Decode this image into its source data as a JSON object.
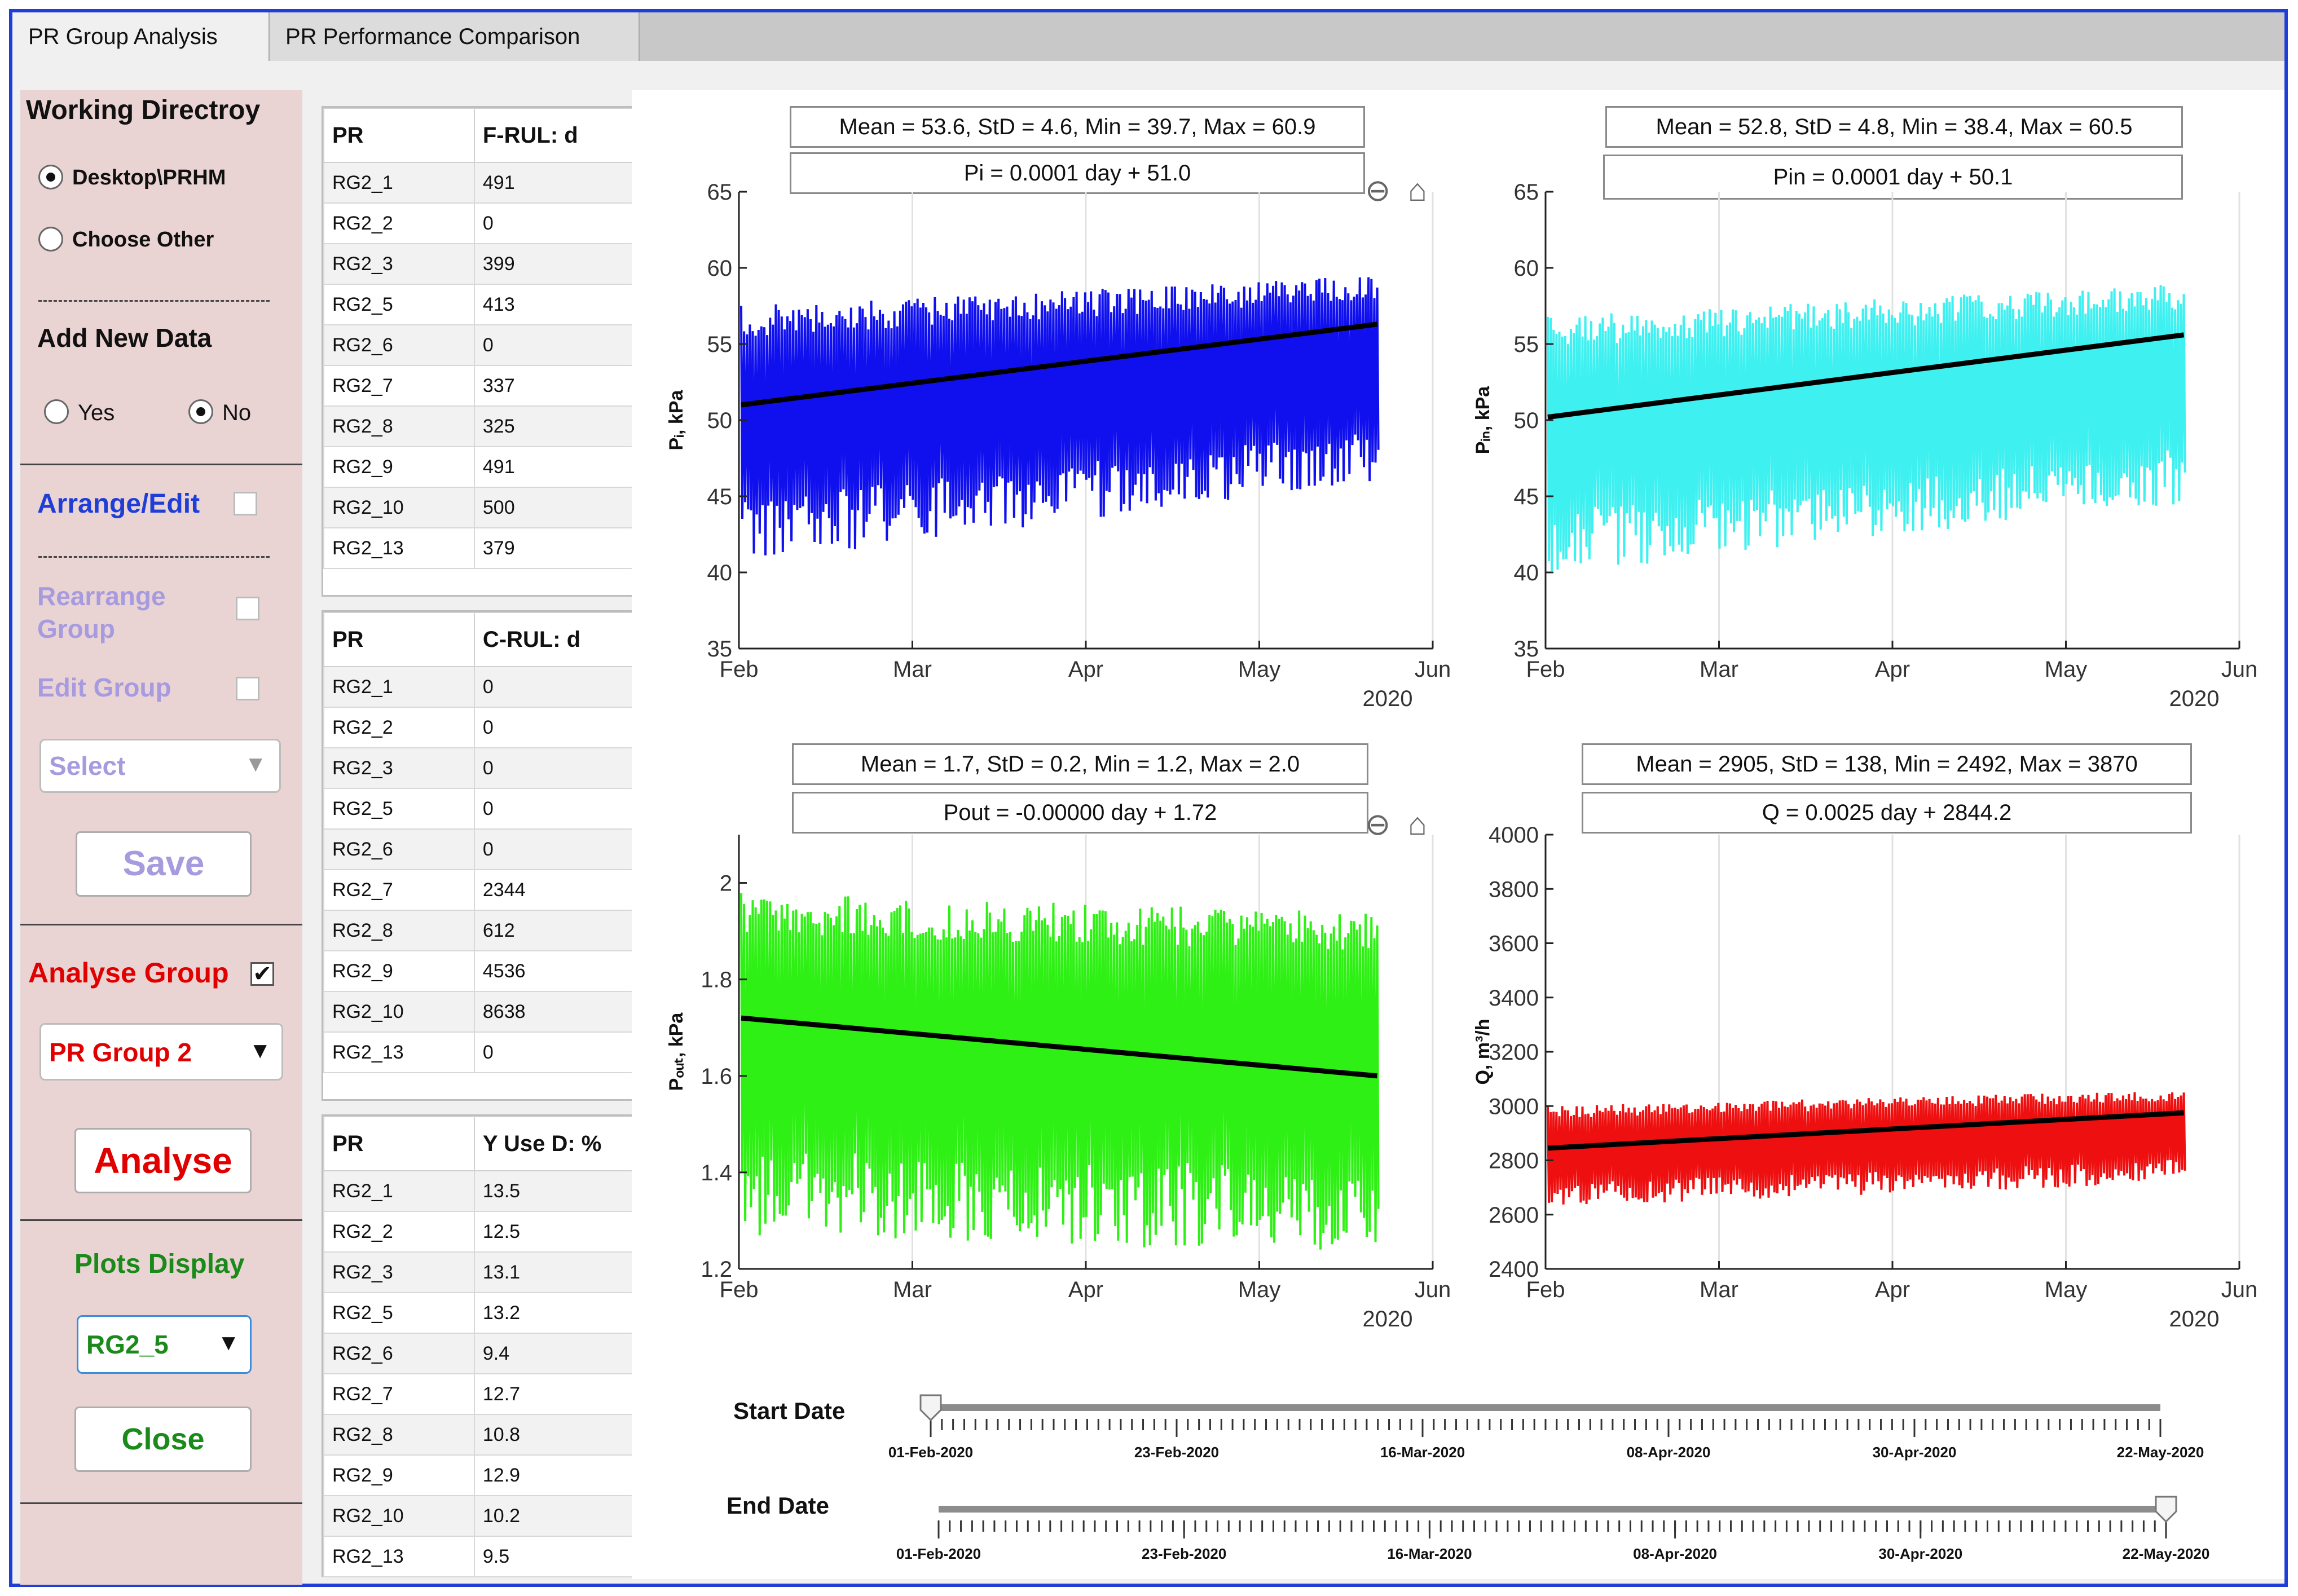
{
  "tabs": [
    "PR Group Analysis",
    "PR Performance Comparison"
  ],
  "left": {
    "working_dir_label": "Working Directroy",
    "radio_desktop": "Desktop\\PRHM",
    "radio_other": "Choose Other",
    "dashes": "------------",
    "add_new_data": "Add New Data",
    "yes": "Yes",
    "no": "No",
    "arrange_edit": "Arrange/Edit",
    "rearrange_group": "Rearrange Group",
    "edit_group": "Edit Group",
    "select": "Select",
    "save": "Save",
    "analyse_group": "Analyse Group",
    "pr_group": "PR Group 2",
    "analyse": "Analyse",
    "plots_display": "Plots Display",
    "plot_select": "RG2_5",
    "close": "Close"
  },
  "tables": [
    {
      "headers": [
        "PR",
        "F-RUL: d"
      ],
      "rows": [
        [
          "RG2_1",
          "491"
        ],
        [
          "RG2_2",
          "0"
        ],
        [
          "RG2_3",
          "399"
        ],
        [
          "RG2_5",
          "413"
        ],
        [
          "RG2_6",
          "0"
        ],
        [
          "RG2_7",
          "337"
        ],
        [
          "RG2_8",
          "325"
        ],
        [
          "RG2_9",
          "491"
        ],
        [
          "RG2_10",
          "500"
        ],
        [
          "RG2_13",
          "379"
        ]
      ]
    },
    {
      "headers": [
        "PR",
        "C-RUL: d"
      ],
      "rows": [
        [
          "RG2_1",
          "0"
        ],
        [
          "RG2_2",
          "0"
        ],
        [
          "RG2_3",
          "0"
        ],
        [
          "RG2_5",
          "0"
        ],
        [
          "RG2_6",
          "0"
        ],
        [
          "RG2_7",
          "2344"
        ],
        [
          "RG2_8",
          "612"
        ],
        [
          "RG2_9",
          "4536"
        ],
        [
          "RG2_10",
          "8638"
        ],
        [
          "RG2_13",
          "0"
        ]
      ]
    },
    {
      "headers": [
        "PR",
        "Y Use D: %"
      ],
      "rows": [
        [
          "RG2_1",
          "13.5"
        ],
        [
          "RG2_2",
          "12.5"
        ],
        [
          "RG2_3",
          "13.1"
        ],
        [
          "RG2_5",
          "13.2"
        ],
        [
          "RG2_6",
          "9.4"
        ],
        [
          "RG2_7",
          "12.7"
        ],
        [
          "RG2_8",
          "10.8"
        ],
        [
          "RG2_9",
          "12.9"
        ],
        [
          "RG2_10",
          "10.2"
        ],
        [
          "RG2_13",
          "9.5"
        ]
      ]
    }
  ],
  "chart_data": [
    {
      "type": "line",
      "stats": "Mean = 53.6, StD = 4.6, Min = 39.7, Max = 60.9",
      "fit": "Pi = 0.0001 day + 51.0",
      "ylabel": "Pᵢ, kPa",
      "ylim": [
        35,
        65
      ],
      "yticks": [
        35,
        40,
        45,
        50,
        55,
        60,
        65
      ],
      "xticks": [
        "Feb",
        "Mar",
        "Apr",
        "May",
        "Jun"
      ],
      "year": "2020",
      "color": "#1010ee",
      "low_start": 40.5,
      "low_end": 46,
      "high_start": 57.5,
      "high_end": 59.5,
      "trend_start": 51.0,
      "trend_end": 56.3
    },
    {
      "type": "line",
      "stats": "Mean = 52.8, StD = 4.8, Min = 38.4, Max = 60.5",
      "fit": "Pin = 0.0001 day + 50.1",
      "ylabel": "Pᵢₙ, kPa",
      "ylim": [
        35,
        65
      ],
      "yticks": [
        35,
        40,
        45,
        50,
        55,
        60,
        65
      ],
      "xticks": [
        "Feb",
        "Mar",
        "Apr",
        "May",
        "Jun"
      ],
      "year": "2020",
      "color": "#3ff0f0",
      "low_start": 39.8,
      "low_end": 44.5,
      "high_start": 56.8,
      "high_end": 59,
      "trend_start": 50.2,
      "trend_end": 55.6
    },
    {
      "type": "line",
      "stats": "Mean = 1.7, StD = 0.2, Min = 1.2, Max = 2.0",
      "fit": "Pout = -0.00000 day + 1.72",
      "ylabel": "Pₒᵤₜ, kPa",
      "ylim": [
        1.2,
        2.1
      ],
      "yticks": [
        1.2,
        1.4,
        1.6,
        1.8,
        2.0
      ],
      "ytick_labels": [
        "1.2",
        "1.4",
        "1.6",
        "1.8",
        "2"
      ],
      "xticks": [
        "Feb",
        "Mar",
        "Apr",
        "May",
        "Jun"
      ],
      "year": "2020",
      "color": "#2ff015",
      "low_start": 1.27,
      "low_end": 1.23,
      "high_start": 1.98,
      "high_end": 1.94,
      "trend_start": 1.72,
      "trend_end": 1.6
    },
    {
      "type": "line",
      "stats": "Mean = 2905, StD = 138, Min = 2492, Max = 3870",
      "fit": "Q = 0.0025 day + 2844.2",
      "ylabel": "Q, m³/h",
      "ylim": [
        2400,
        4000
      ],
      "yticks": [
        2400,
        2600,
        2800,
        3000,
        3200,
        3400,
        3600,
        3800,
        4000
      ],
      "xticks": [
        "Feb",
        "Mar",
        "Apr",
        "May",
        "Jun"
      ],
      "year": "2020",
      "color": "#ee1010",
      "low_start": 2620,
      "low_end": 2720,
      "high_start": 3000,
      "high_end": 3060,
      "trend_start": 2845,
      "trend_end": 2975
    }
  ],
  "sliders": {
    "start_label": "Start Date",
    "end_label": "End Date",
    "ticks": [
      "01-Feb-2020",
      "23-Feb-2020",
      "16-Mar-2020",
      "08-Apr-2020",
      "30-Apr-2020",
      "22-May-2020"
    ]
  },
  "colors": {
    "accent_blue": "#1f3ed8",
    "panel": "#ead3d3",
    "red_label": "#e00000",
    "green_label": "#1a8a1a",
    "disabled": "#a79be0"
  }
}
